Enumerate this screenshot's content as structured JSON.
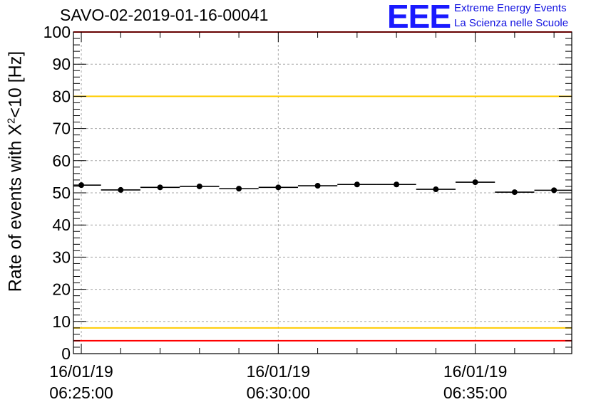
{
  "header": {
    "run_title": "SAVO-02-2019-01-16-00041",
    "logo_text": "EEE",
    "logo_line1": "Extreme Energy Events",
    "logo_line2": "La Scienza nelle Scuole"
  },
  "chart_data": {
    "type": "scatter",
    "title": "SAVO-02-2019-01-16-00041",
    "ylabel": {
      "prefix": "Rate of events with X",
      "superscript": "2",
      "suffix": "<10 [Hz]"
    },
    "ylim": [
      0,
      100
    ],
    "x_range_minutes": [
      -0.2,
      12.45
    ],
    "y_major_ticks": [
      0,
      10,
      20,
      30,
      40,
      50,
      60,
      70,
      80,
      90,
      100
    ],
    "x_ticks": [
      {
        "minute": 0,
        "date": "16/01/19",
        "time": "06:25:00"
      },
      {
        "minute": 5,
        "date": "16/01/19",
        "time": "06:30:00"
      },
      {
        "minute": 10,
        "date": "16/01/19",
        "time": "06:35:00"
      }
    ],
    "series": [
      {
        "name": "rate",
        "bin_width_minutes": 1,
        "x": [
          0,
          1,
          2,
          3,
          4,
          5,
          6,
          7,
          8,
          9,
          10,
          11,
          12
        ],
        "values": [
          52.4,
          50.9,
          51.7,
          52.0,
          51.3,
          51.7,
          52.2,
          52.6,
          52.6,
          51.1,
          53.3,
          50.2,
          50.8
        ]
      }
    ],
    "reference_lines": [
      {
        "y": 100,
        "color": "#ff0000"
      },
      {
        "y": 80,
        "color": "#ffcc00"
      },
      {
        "y": 8,
        "color": "#ffcc00"
      },
      {
        "y": 4,
        "color": "#ff0000"
      }
    ],
    "grid": true
  }
}
